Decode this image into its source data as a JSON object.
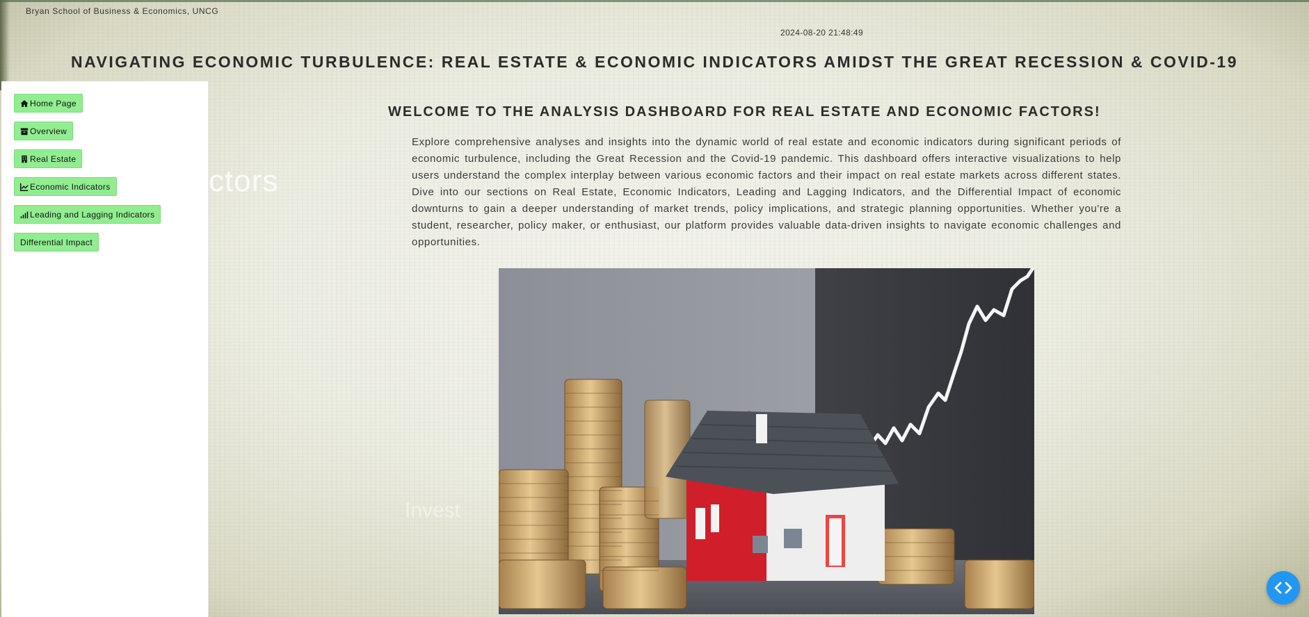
{
  "header": {
    "school": "Bryan School of Business & Economics, UNCG",
    "timestamp": "2024-08-20 21:48:49",
    "title": "NAVIGATING ECONOMIC TURBULENCE: REAL ESTATE & ECONOMIC INDICATORS AMIDST THE GREAT RECESSION & COVID-19"
  },
  "sidebar": {
    "items": [
      {
        "label": "Home Page",
        "icon": "home-icon"
      },
      {
        "label": "Overview",
        "icon": "archive-icon"
      },
      {
        "label": "Real Estate",
        "icon": "building-icon"
      },
      {
        "label": "Economic Indicators",
        "icon": "line-chart-icon"
      },
      {
        "label": "Leading and Lagging Indicators",
        "icon": "signal-bars-icon"
      },
      {
        "label": "Differential Impact",
        "icon": ""
      }
    ]
  },
  "background_text": {
    "ghost_left": "ctors",
    "ghost_bottom": "Invest"
  },
  "main": {
    "welcome": "WELCOME TO THE ANALYSIS DASHBOARD FOR REAL ESTATE AND ECONOMIC FACTORS!",
    "intro": "Explore comprehensive analyses and insights into the dynamic world of real estate and economic indicators during significant periods of economic turbulence, including the Great Recession and the Covid-19 pandemic. This dashboard offers interactive visualizations to help users understand the complex interplay between various economic factors and their impact on real estate markets across different states. Dive into our sections on Real Estate, Economic Indicators, Leading and Lagging Indicators, and the Differential Impact of economic downturns to gain a deeper understanding of market trends, policy implications, and strategic planning opportunities. Whether you're a student, researcher, policy maker, or enthusiast, our platform provides valuable data-driven insights to navigate economic challenges and opportunities."
  },
  "colors": {
    "nav_button": "#90ee90",
    "code_button": "#2196f3"
  },
  "floating": {
    "code_button_icon": "code-icon"
  }
}
